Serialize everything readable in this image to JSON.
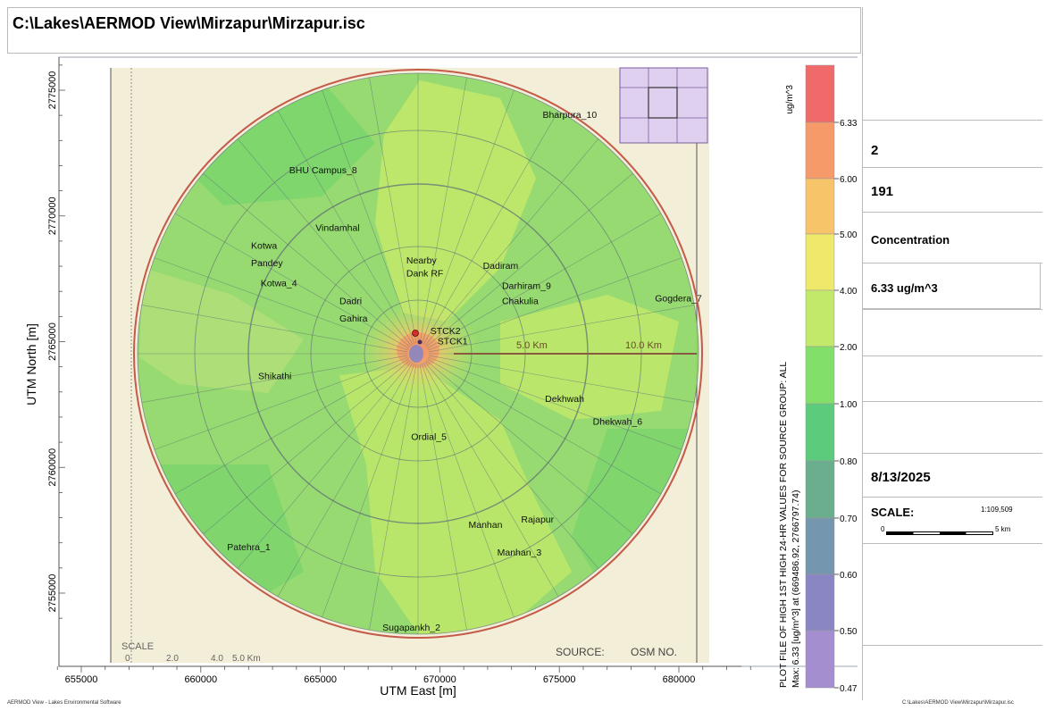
{
  "header": {
    "title": "C:\\Lakes\\AERMOD View\\Mirzapur\\Mirzapur.isc"
  },
  "axes": {
    "x_label": "UTM East [m]",
    "y_label": "UTM North [m]",
    "x_ticks": [
      "655000",
      "660000",
      "665000",
      "670000",
      "675000",
      "680000"
    ],
    "y_ticks": [
      "2775000",
      "2770000",
      "2765000",
      "2760000",
      "2755000"
    ]
  },
  "map": {
    "places": [
      {
        "label": "Bharpura_10",
        "east": 674300,
        "north": 2773900
      },
      {
        "label": "BHU Campus_8",
        "east": 663700,
        "north": 2771700
      },
      {
        "label": "Vindamhal",
        "east": 664800,
        "north": 2769400
      },
      {
        "label": "Kotwa",
        "east": 662100,
        "north": 2768700
      },
      {
        "label": "Pandey",
        "east": 662100,
        "north": 2768000
      },
      {
        "label": "Kotwa_4",
        "east": 662500,
        "north": 2767200
      },
      {
        "label": "Nearby",
        "east": 668600,
        "north": 2768100
      },
      {
        "label": "Dank RF",
        "east": 668600,
        "north": 2767600
      },
      {
        "label": "Dadiram",
        "east": 671800,
        "north": 2767900
      },
      {
        "label": "Darhiram_9",
        "east": 672600,
        "north": 2767100
      },
      {
        "label": "Chakulia",
        "east": 672600,
        "north": 2766500
      },
      {
        "label": "Gogdera_7",
        "east": 679000,
        "north": 2766600
      },
      {
        "label": "Dadri",
        "east": 665800,
        "north": 2766500
      },
      {
        "label": "Gahira",
        "east": 665800,
        "north": 2765800
      },
      {
        "label": "STCK2",
        "east": 669600,
        "north": 2765300
      },
      {
        "label": "STCK1",
        "east": 669900,
        "north": 2764900
      },
      {
        "label": "Shikathi",
        "east": 662400,
        "north": 2763500
      },
      {
        "label": "Dekhwah",
        "east": 674400,
        "north": 2762600
      },
      {
        "label": "Dhekwah_6",
        "east": 676400,
        "north": 2761700
      },
      {
        "label": "Ordial_5",
        "east": 668800,
        "north": 2761100
      },
      {
        "label": "Rajapur",
        "east": 673400,
        "north": 2757800
      },
      {
        "label": "Manhan",
        "east": 671200,
        "north": 2757600
      },
      {
        "label": "Manhan_3",
        "east": 672400,
        "north": 2756500
      },
      {
        "label": "Patehra_1",
        "east": 661100,
        "north": 2756700
      },
      {
        "label": "Sugapankh_2",
        "east": 667600,
        "north": 2753500
      }
    ],
    "ring_labels": [
      "5.0 Km",
      "10.0 Km"
    ],
    "map_scale_text": "SCALE",
    "map_scale_ticks": [
      "0",
      "2.0",
      "4.0",
      "5.0 Km"
    ],
    "source_text": "SOURCE:",
    "osm_text": "OSM NO."
  },
  "legend": {
    "unit": "ug/m^3",
    "breaks": [
      "6.33",
      "6.00",
      "5.00",
      "4.00",
      "2.00",
      "1.00",
      "0.80",
      "0.70",
      "0.60",
      "0.50",
      "0.47"
    ],
    "colors": [
      "#f06a6a",
      "#f59a68",
      "#f8c46a",
      "#eee96a",
      "#c3e96a",
      "#82e06a",
      "#5ccc7c",
      "#6aae8e",
      "#7496ae",
      "#8a86c4",
      "#a48ed0"
    ],
    "caption_1": "PLOT FILE OF HIGH 1ST HIGH 24-HR VALUES FOR SOURCE GROUP: ALL",
    "caption_2": "Max:  6.33  [ug/m^3]  at  (669486.92, 2766797.74)"
  },
  "info_panel": {
    "sources": "2",
    "receptors": "191",
    "output_type": "Concentration",
    "max_value": "6.33 ug/m^3",
    "date": "8/13/2025",
    "scale_label": "SCALE:",
    "scale_ratio": "1:109,509",
    "scale_zero": "0",
    "scale_km": "5 km"
  },
  "footer": {
    "left": "AERMOD View - Lakes Environmental Software",
    "right": "C:\\Lakes\\AERMOD View\\Mirzapur\\Mirzapur.isc"
  }
}
